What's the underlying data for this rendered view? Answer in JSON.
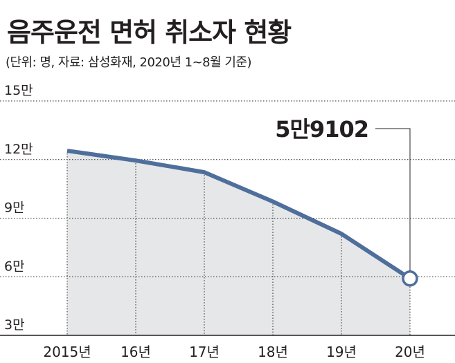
{
  "title": "음주운전 면허 취소자 현황",
  "subtitle": "(단위: 명, 자료: 삼성화재, 2020년 1~8월 기준)",
  "colors": {
    "line": "#4e6e9c",
    "area": "#e6e7e8",
    "grid": "#231f20",
    "axis": "#231f20",
    "marker_fill": "#ffffff"
  },
  "chart_data": {
    "type": "area",
    "categories": [
      "2015년",
      "16년",
      "17년",
      "18년",
      "19년",
      "20년"
    ],
    "values": [
      124500,
      119500,
      113500,
      98500,
      82000,
      59102
    ],
    "ylim": [
      30000,
      150000
    ],
    "y_ticks": [
      {
        "value": 150000,
        "label": "15만"
      },
      {
        "value": 120000,
        "label": "12만"
      },
      {
        "value": 90000,
        "label": "9만"
      },
      {
        "value": 60000,
        "label": "6만"
      },
      {
        "value": 30000,
        "label": "3만"
      }
    ],
    "grid": true,
    "annotation": {
      "index": 5,
      "label": "5만9102"
    }
  }
}
